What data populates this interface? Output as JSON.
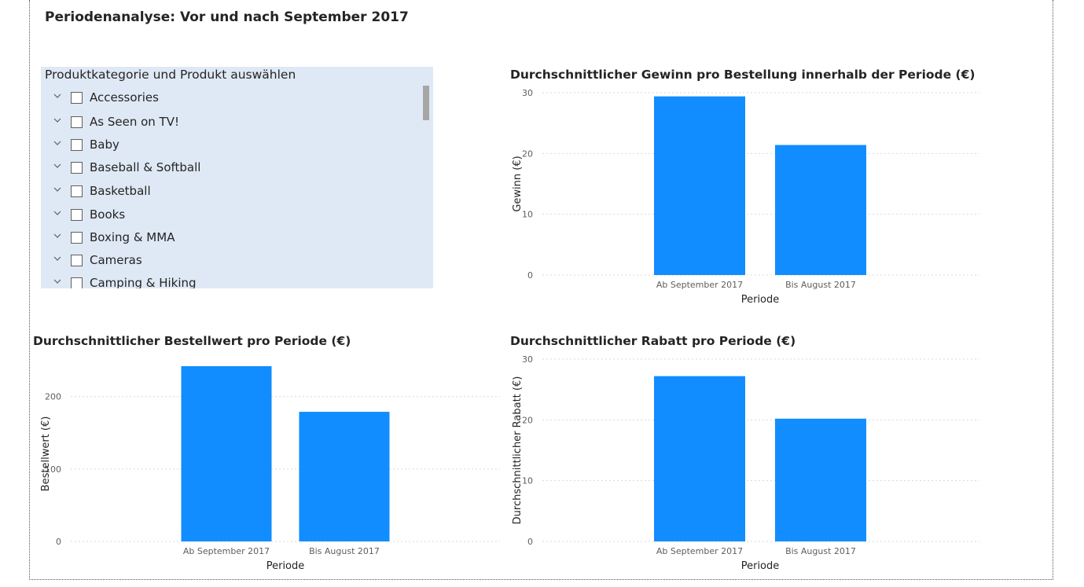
{
  "page": {
    "title": "Periodenanalyse: Vor und nach September 2017"
  },
  "slicer": {
    "title": "Produktkategorie und Produkt auswählen",
    "items": [
      {
        "label": "Accessories"
      },
      {
        "label": "As Seen on TV!"
      },
      {
        "label": "Baby"
      },
      {
        "label": "Baseball & Softball"
      },
      {
        "label": "Basketball"
      },
      {
        "label": "Books"
      },
      {
        "label": "Boxing & MMA"
      },
      {
        "label": "Cameras"
      },
      {
        "label": "Camping & Hiking"
      }
    ]
  },
  "colors": {
    "bar": "#118dff",
    "grid": "#d9d9d9"
  },
  "chart_data": [
    {
      "type": "bar",
      "title": "Durchschnittlicher Gewinn pro Bestellung innerhalb der Periode (€)",
      "xlabel": "Periode",
      "ylabel": "Gewinn (€)",
      "categories": [
        "Ab September 2017",
        "Bis August 2017"
      ],
      "values": [
        29.4,
        21.4
      ],
      "ylim": [
        0,
        30
      ],
      "yticks": [
        0,
        10,
        20,
        30
      ],
      "grid": true
    },
    {
      "type": "bar",
      "title": "Durchschnittlicher Bestellwert pro Periode (€)",
      "xlabel": "Periode",
      "ylabel": "Bestellwert (€)",
      "categories": [
        "Ab September 2017",
        "Bis August 2017"
      ],
      "values": [
        242,
        179
      ],
      "ylim": [
        0,
        242
      ],
      "yticks": [
        0,
        100,
        200
      ],
      "grid": true
    },
    {
      "type": "bar",
      "title": "Durchschnittlicher Rabatt pro Periode (€)",
      "xlabel": "Periode",
      "ylabel": "Durchschnittlicher Rabatt (€)",
      "categories": [
        "Ab September 2017",
        "Bis August 2017"
      ],
      "values": [
        27.2,
        20.2
      ],
      "ylim": [
        0,
        30
      ],
      "yticks": [
        0,
        10,
        20,
        30
      ],
      "grid": true
    }
  ]
}
